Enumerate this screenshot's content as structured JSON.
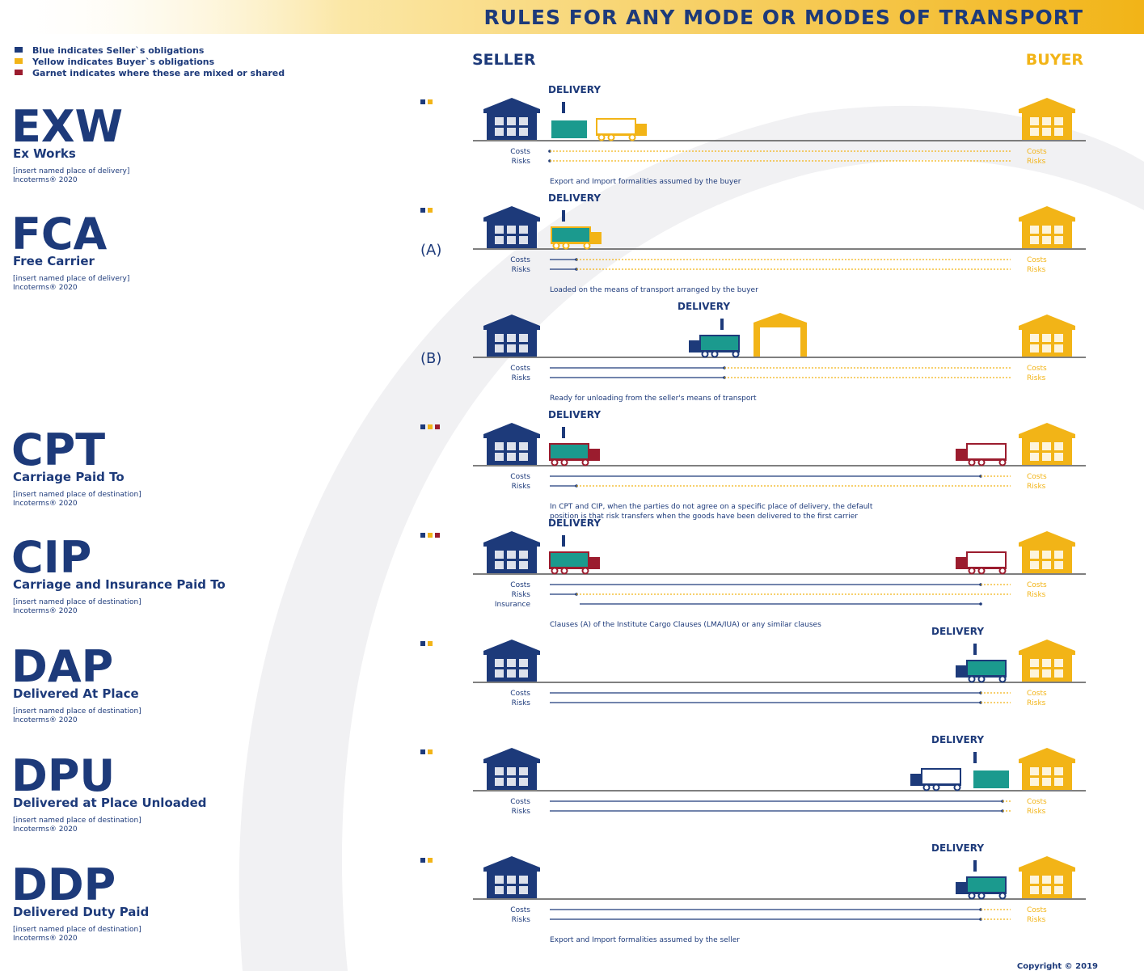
{
  "title": "RULES FOR ANY MODE OR MODES OF TRANSPORT",
  "legend": [
    "Blue indicates Seller`s obligations",
    "Yellow indicates Buyer`s obligations",
    "Garnet indicates where these are mixed or shared"
  ],
  "seller": "SELLER",
  "buyer": "BUYER",
  "copyright": "Copyright © 2019",
  "rules": [
    {
      "code": "EXW",
      "name": "Ex Works",
      "place": "[insert named place of delivery]",
      "edition": "Incoterms® 2020",
      "diagrams": [
        {
          "delivery": "DELIVERY",
          "labels": [
            "Costs",
            "Risks"
          ],
          "buyer_labels": [
            "Costs",
            "Risks"
          ],
          "note": [
            "Export and Import formalities assumed by the buyer"
          ]
        }
      ]
    },
    {
      "code": "FCA",
      "name": "Free Carrier",
      "place": "[insert named place of delivery]",
      "edition": "Incoterms® 2020",
      "diagrams": [
        {
          "variant": "(A)",
          "delivery": "DELIVERY",
          "labels": [
            "Costs",
            "Risks"
          ],
          "buyer_labels": [
            "Costs",
            "Risks"
          ],
          "note": [
            "Loaded on the means of transport arranged by the buyer"
          ]
        },
        {
          "variant": "(B)",
          "delivery": "DELIVERY",
          "labels": [
            "Costs",
            "Risks"
          ],
          "buyer_labels": [
            "Costs",
            "Risks"
          ],
          "note": [
            "Ready for unloading from the seller's means of transport"
          ]
        }
      ]
    },
    {
      "code": "CPT",
      "name": "Carriage Paid To",
      "place": "[insert named place of destination]",
      "edition": "Incoterms® 2020",
      "diagrams": [
        {
          "delivery": "DELIVERY",
          "labels": [
            "Costs",
            "Risks"
          ],
          "buyer_labels": [
            "Costs",
            "Risks"
          ],
          "note": [
            "In CPT and CIP, when the parties do not agree on a specific place of delivery, the default",
            "position is that risk transfers when the goods have been delivered to the first carrier"
          ]
        }
      ]
    },
    {
      "code": "CIP",
      "name": "Carriage and Insurance Paid To",
      "place": "[insert named place of destination]",
      "edition": "Incoterms® 2020",
      "diagrams": [
        {
          "delivery": "DELIVERY",
          "labels": [
            "Costs",
            "Risks",
            "Insurance"
          ],
          "buyer_labels": [
            "Costs",
            "Risks"
          ],
          "note": [
            "Clauses (A) of the Institute Cargo Clauses (LMA/IUA) or any similar clauses"
          ]
        }
      ]
    },
    {
      "code": "DAP",
      "name": "Delivered At Place",
      "place": "[insert named place of destination]",
      "edition": "Incoterms® 2020",
      "diagrams": [
        {
          "delivery": "DELIVERY",
          "labels": [
            "Costs",
            "Risks"
          ],
          "buyer_labels": [
            "Costs",
            "Risks"
          ]
        }
      ]
    },
    {
      "code": "DPU",
      "name": "Delivered at Place Unloaded",
      "place": "[insert named place of destination]",
      "edition": "Incoterms® 2020",
      "diagrams": [
        {
          "delivery": "DELIVERY",
          "labels": [
            "Costs",
            "Risks"
          ],
          "buyer_labels": [
            "Costs",
            "Risks"
          ]
        }
      ]
    },
    {
      "code": "DDP",
      "name": "Delivered Duty Paid",
      "place": "[insert named place of destination]",
      "edition": "Incoterms® 2020",
      "diagrams": [
        {
          "delivery": "DELIVERY",
          "labels": [
            "Costs",
            "Risks"
          ],
          "buyer_labels": [
            "Costs",
            "Risks"
          ],
          "note": [
            "Export and Import formalities assumed by the seller"
          ]
        }
      ]
    }
  ]
}
